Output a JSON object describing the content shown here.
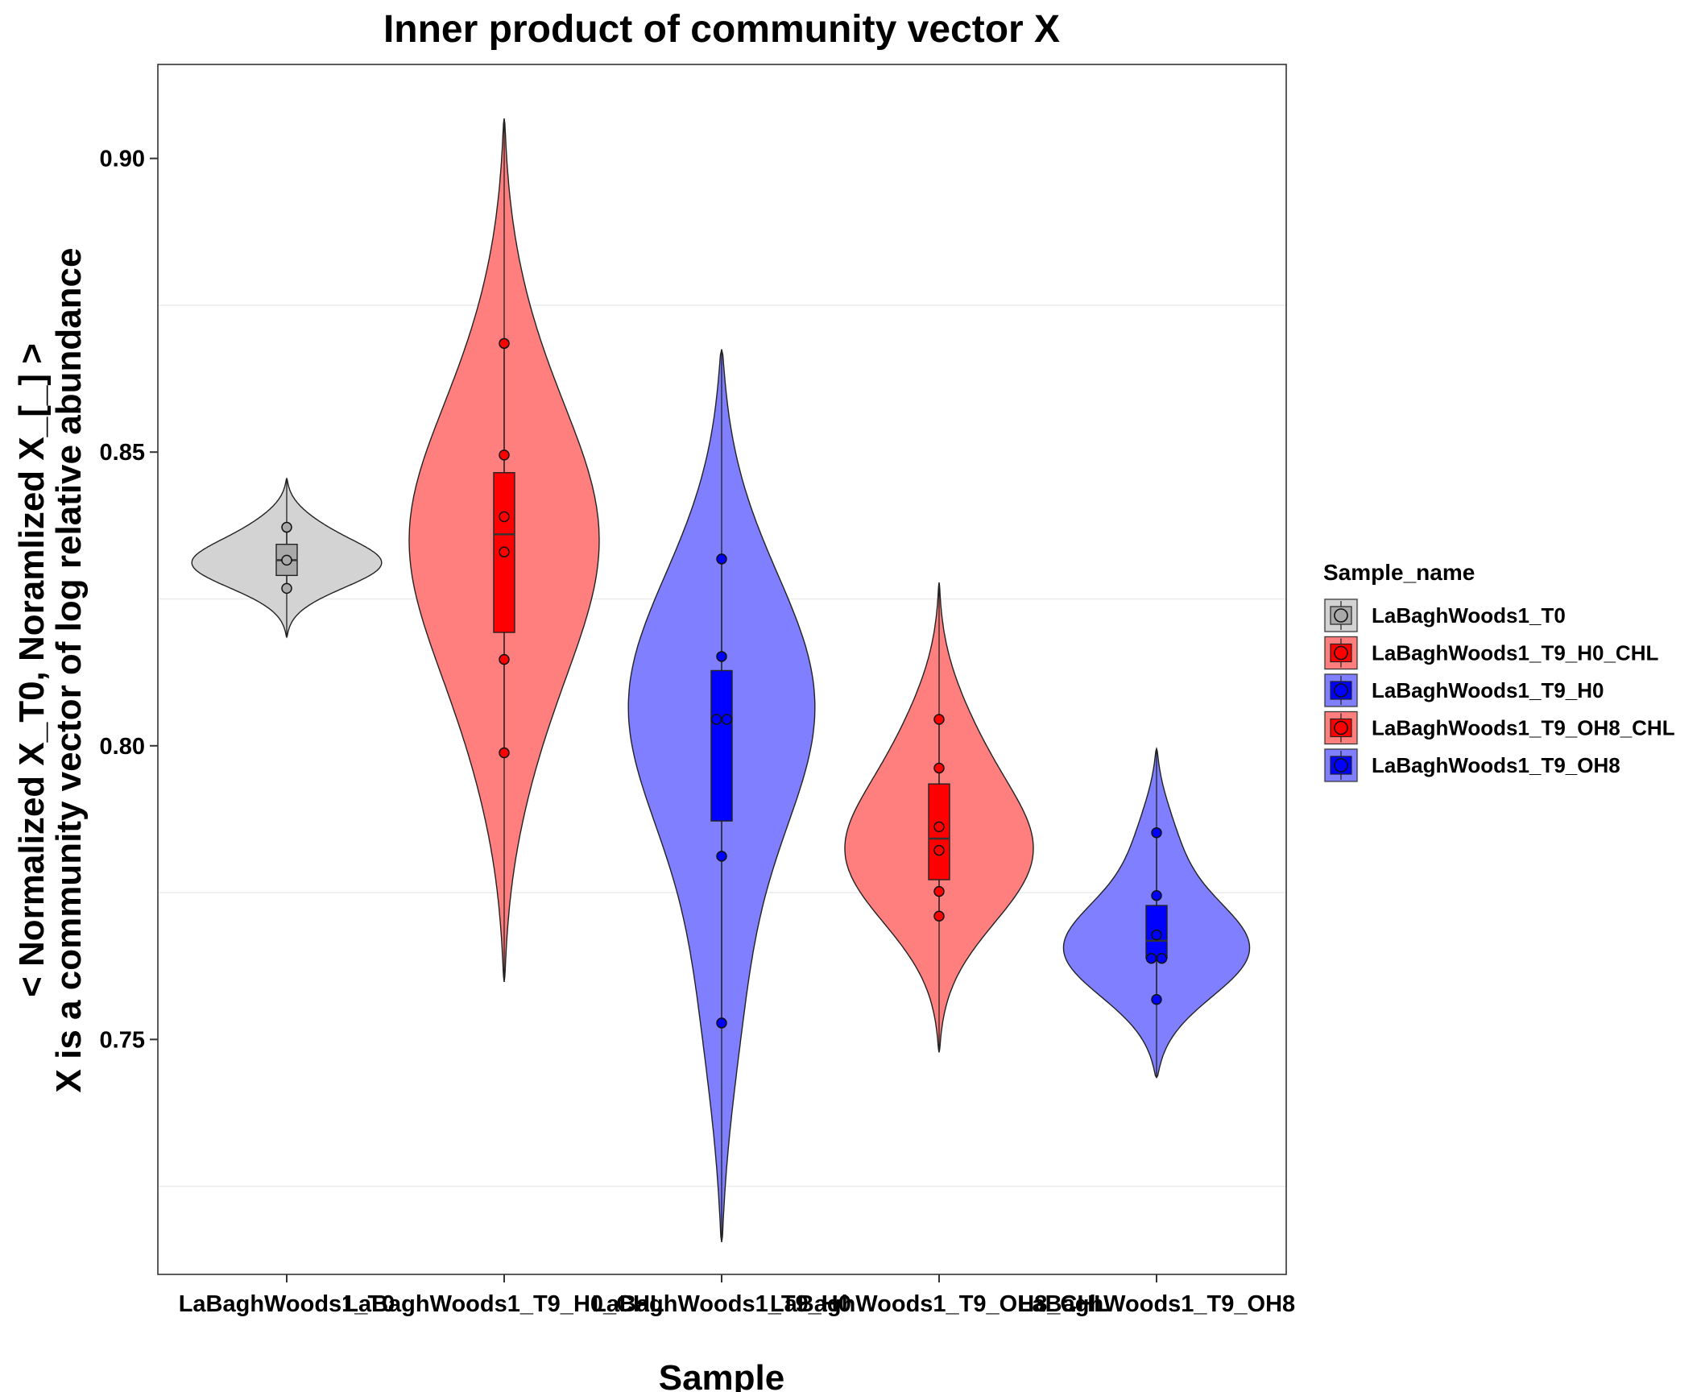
{
  "chart_data": {
    "type": "violin",
    "title": "Inner product of community vector X",
    "xlabel": "Sample",
    "ylabel_line1": "< Normalized X_T0, Noramlized X_[_] >",
    "ylabel_line2": "X is a community vector of log relative abundance",
    "ylim": [
      0.71,
      0.916
    ],
    "y_ticks": [
      0.75,
      0.8,
      0.85,
      0.9
    ],
    "y_tick_labels": [
      "0.75",
      "0.80",
      "0.85",
      "0.90"
    ],
    "grid": true,
    "legend_title": "Sample_name",
    "legend_position": "right",
    "categories": [
      "LaBaghWoods1_T0",
      "LaBaghWoods1_T9_H0_CHL",
      "LaBaghWoods1_T9_H0",
      "LaBaghWoods1_T9_OH8_CHL",
      "LaBaghWoods1_T9_OH8"
    ],
    "series": [
      {
        "name": "LaBaghWoods1_T0",
        "violin_color": "#D3D3D3",
        "box_color": "#A9A9A9",
        "points": [
          0.8372,
          0.8316,
          0.8268
        ],
        "box": {
          "q1": 0.829,
          "median": 0.8316,
          "q3": 0.8343,
          "lower": 0.8268,
          "upper": 0.8372
        },
        "violin_range": [
          0.8185,
          0.8455
        ],
        "violin_mode": 0.8312
      },
      {
        "name": "LaBaghWoods1_T9_H0_CHL",
        "violin_color": "#FF7F7F",
        "box_color": "#FF0000",
        "points": [
          0.8685,
          0.8495,
          0.839,
          0.833,
          0.8147,
          0.7988
        ],
        "box": {
          "q1": 0.8193,
          "median": 0.836,
          "q3": 0.8465,
          "lower": 0.7988,
          "upper": 0.8685
        },
        "violin_range": [
          0.7598,
          0.9068
        ],
        "violin_mode": 0.834
      },
      {
        "name": "LaBaghWoods1_T9_H0",
        "violin_color": "#7F7FFF",
        "box_color": "#0000FF",
        "points": [
          0.8318,
          0.8152,
          0.8045,
          0.8045,
          0.7812,
          0.7528
        ],
        "box": {
          "q1": 0.7872,
          "median": 0.8045,
          "q3": 0.8128,
          "lower": 0.7528,
          "upper": 0.8318
        },
        "violin_range": [
          0.7155,
          0.8675
        ],
        "violin_mode": 0.808
      },
      {
        "name": "LaBaghWoods1_T9_OH8_CHL",
        "violin_color": "#FF7F7F",
        "box_color": "#FF0000",
        "points": [
          0.8045,
          0.7962,
          0.7862,
          0.7822,
          0.7752,
          0.771
        ],
        "box": {
          "q1": 0.7772,
          "median": 0.7842,
          "q3": 0.7935,
          "lower": 0.771,
          "upper": 0.8045
        },
        "violin_range": [
          0.7478,
          0.8278
        ],
        "violin_mode": 0.782
      },
      {
        "name": "LaBaghWoods1_T9_OH8",
        "violin_color": "#7F7FFF",
        "box_color": "#0000FF",
        "points": [
          0.7852,
          0.7745,
          0.7678,
          0.7638,
          0.7638,
          0.7568
        ],
        "box": {
          "q1": 0.7638,
          "median": 0.7668,
          "q3": 0.7728,
          "lower": 0.7568,
          "upper": 0.7852
        },
        "violin_range": [
          0.7435,
          0.7995
        ],
        "violin_mode": 0.765
      }
    ]
  }
}
